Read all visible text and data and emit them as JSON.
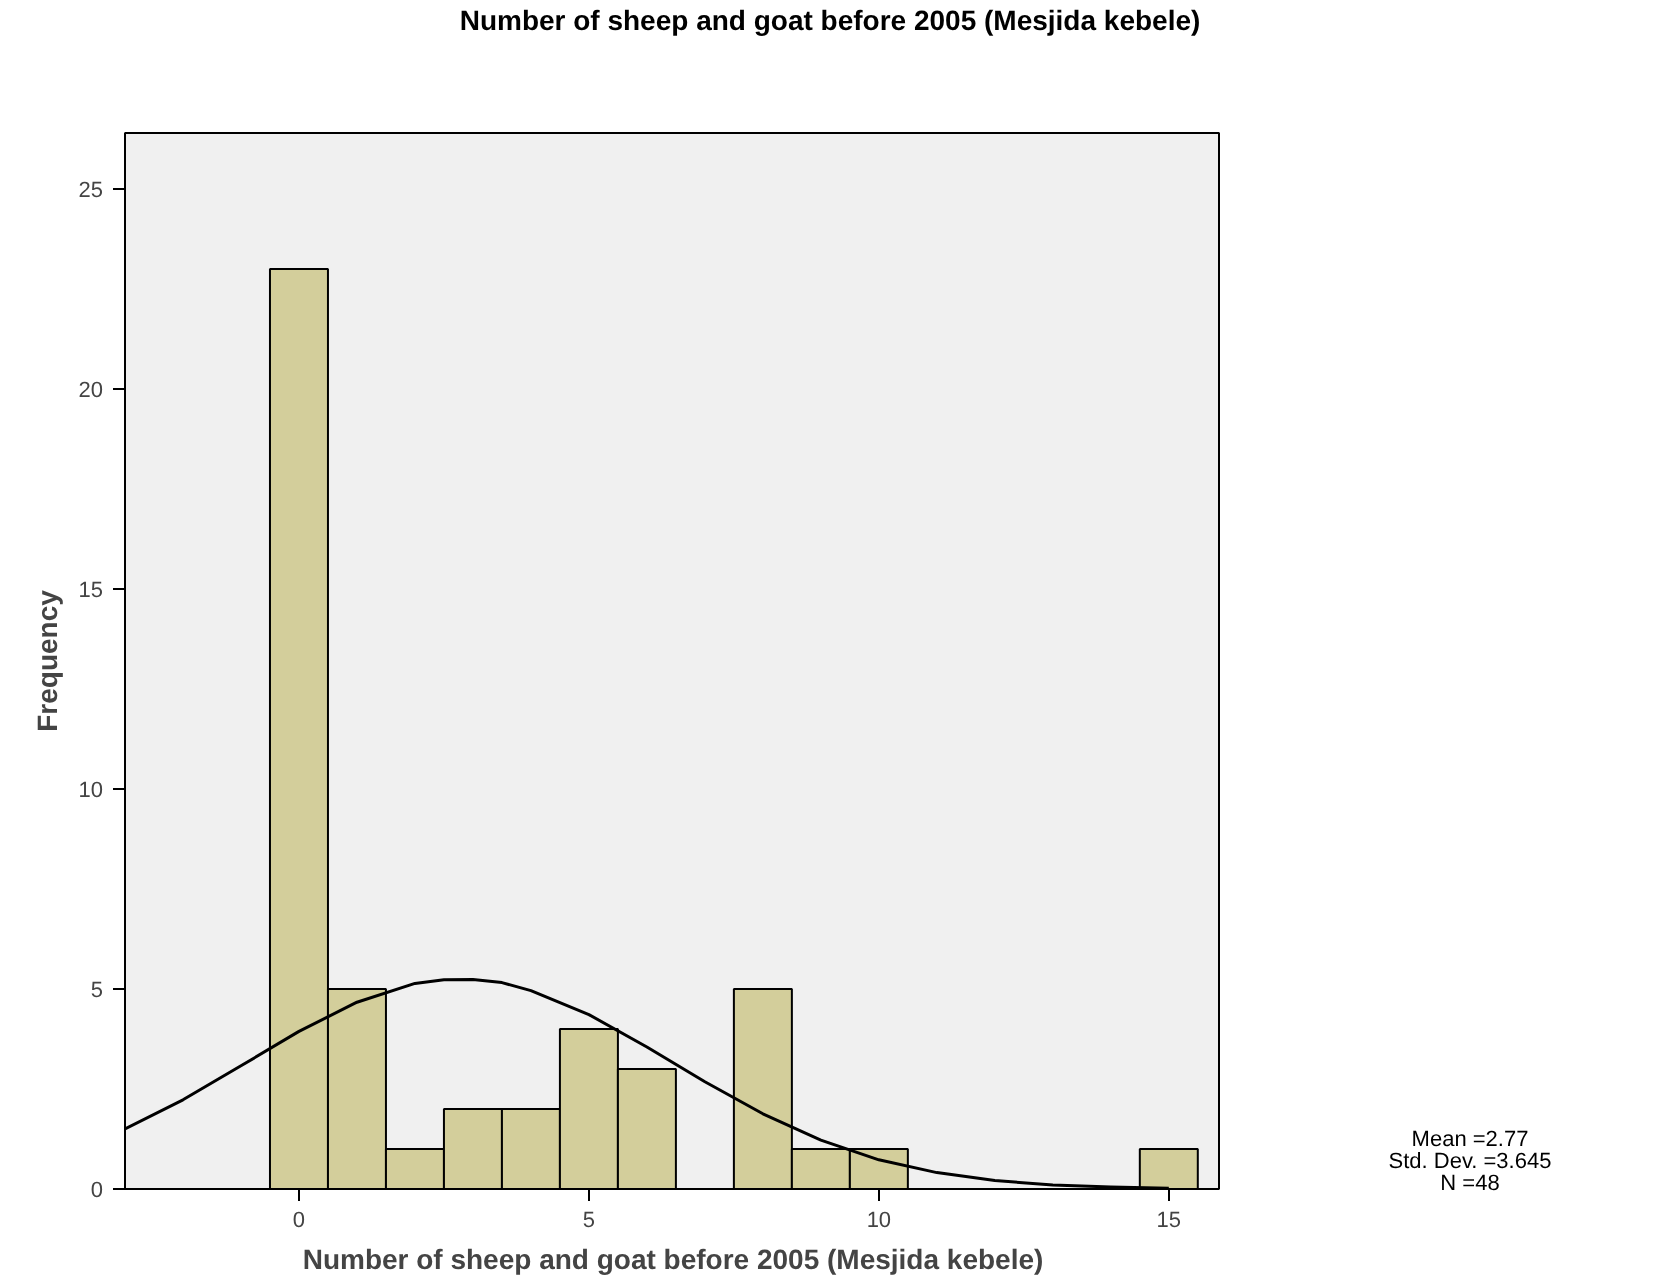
{
  "chart_data": {
    "type": "histogram",
    "title": "Number of sheep and goat before 2005 (Mesjida kebele)",
    "xlabel": "Number of sheep and goat before 2005 (Mesjida kebele)",
    "ylabel": "Frequency",
    "series": [
      {
        "color": "#d3ce9b",
        "bins": [
          -0.5,
          0.5,
          1.5,
          2.5,
          3.5,
          4.5,
          5.5,
          6.5,
          7.5,
          8.5,
          9.5,
          10.5,
          11.5,
          12.5,
          13.5,
          14.5,
          15.5
        ],
        "values": [
          23,
          5,
          1,
          2,
          2,
          4,
          3,
          0,
          5,
          1,
          1,
          0,
          0,
          0,
          0,
          1
        ]
      },
      {
        "type": "line",
        "color": "#000000",
        "x": [
          -3,
          -2,
          -1,
          0,
          1,
          2,
          2.5,
          3,
          3.5,
          4,
          5,
          6,
          7,
          8,
          9,
          10,
          11,
          12,
          13,
          14,
          15
        ],
        "values": [
          1.5,
          2.23,
          3.08,
          3.94,
          4.67,
          5.14,
          5.23,
          5.24,
          5.16,
          4.96,
          4.36,
          3.55,
          2.68,
          1.88,
          1.22,
          0.73,
          0.41,
          0.21,
          0.1,
          0.05,
          0.02
        ]
      }
    ],
    "xlim": [
      -3,
      15.9
    ],
    "ylim": [
      0,
      26.4
    ],
    "xticks": [
      0,
      5,
      10,
      15
    ],
    "yticks": [
      0,
      5,
      10,
      15,
      20,
      25
    ],
    "grid": false,
    "annotations": [
      "Mean =2.77",
      "Std. Dev. =3.645",
      "N =48"
    ]
  }
}
